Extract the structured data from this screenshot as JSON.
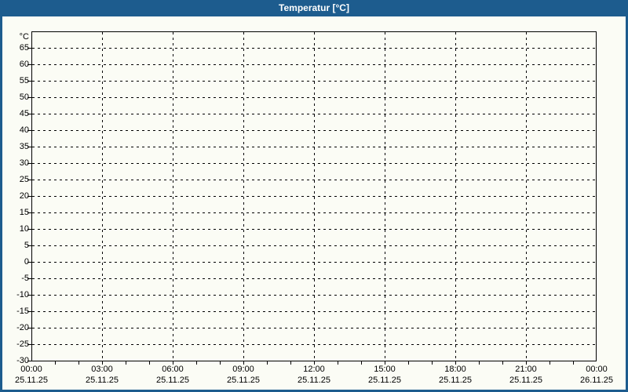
{
  "window": {
    "title": "Temperatur [°C]"
  },
  "colors": {
    "accent": "#1d5c8e",
    "background": "#fbfcf5",
    "grid": "#000000",
    "title_text": "#ffffff"
  },
  "chart_data": {
    "type": "line",
    "title": "Temperatur [°C]",
    "xlabel": "",
    "ylabel": "°C",
    "ylim": [
      -30,
      65
    ],
    "y_tick_step": 5,
    "y_ticks": [
      65,
      60,
      55,
      50,
      45,
      40,
      35,
      30,
      25,
      20,
      15,
      10,
      5,
      0,
      -5,
      -10,
      -15,
      -20,
      -25,
      -30
    ],
    "x_range_hours": 24,
    "x_major_step_hours": 3,
    "x_minor_step_hours": 1,
    "x_ticks": [
      {
        "hour": 0,
        "time": "00:00",
        "date": "25.11.25"
      },
      {
        "hour": 3,
        "time": "03:00",
        "date": "25.11.25"
      },
      {
        "hour": 6,
        "time": "06:00",
        "date": "25.11.25"
      },
      {
        "hour": 9,
        "time": "09:00",
        "date": "25.11.25"
      },
      {
        "hour": 12,
        "time": "12:00",
        "date": "25.11.25"
      },
      {
        "hour": 15,
        "time": "15:00",
        "date": "25.11.25"
      },
      {
        "hour": 18,
        "time": "18:00",
        "date": "25.11.25"
      },
      {
        "hour": 21,
        "time": "21:00",
        "date": "25.11.25"
      },
      {
        "hour": 24,
        "time": "00:00",
        "date": "26.11.25"
      }
    ],
    "grid": true,
    "legend": "none",
    "series": []
  }
}
